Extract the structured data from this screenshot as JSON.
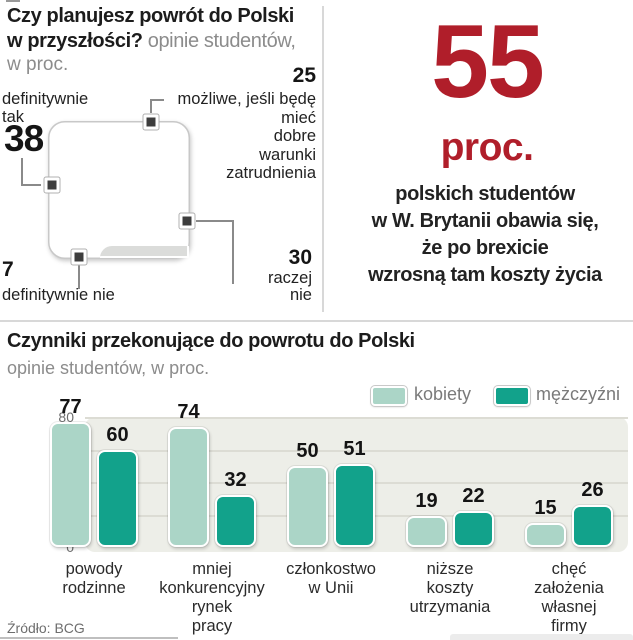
{
  "colors": {
    "teal_dark": "#12a28b",
    "teal_light": "#abd5c7",
    "slice_gray": "#dbdcda",
    "accent_red": "#b01e2a",
    "text_gray": "#8c8c8c",
    "plot_bg": "#edeee8"
  },
  "top_left": {
    "title_bold_1": "Czy planujesz powrót do Polski",
    "title_bold_2": "w przyszłości?",
    "title_sub": " opinie studentów,",
    "title_sub_2": "w proc.",
    "label_def_tak_1": "definitywnie",
    "label_def_tak_2": "tak",
    "label_mozliwe_lines": [
      "możliwe, jeśli będę",
      "mieć",
      "dobre",
      "warunki",
      "zatrudnienia"
    ],
    "label_def_nie": "definitywnie nie",
    "label_raczej_1": "raczej",
    "label_raczej_2": "nie"
  },
  "highlight": {
    "number": "55",
    "unit": "proc.",
    "lines": [
      "polskich studentów",
      "w W. Brytanii obawia się,",
      "że po brexicie",
      "wzrosną tam koszty życia"
    ]
  },
  "bar_section": {
    "title": "Czynniki przekonujące do powrotu do Polski",
    "subtitle": "opinie studentów, w proc."
  },
  "source": "Źródło: BCG",
  "chart_data": [
    {
      "type": "pie",
      "title": "Czy planujesz powrót do Polski w przyszłości?",
      "subtitle": "opinie studentów, w proc.",
      "shape": "rounded-square",
      "slices": [
        {
          "label": "definitywnie tak",
          "value": 38,
          "color": "#12a28b"
        },
        {
          "label": "możliwe, jeśli będę mieć dobre warunki zatrudnienia",
          "value": 25,
          "color": "#abd5c7"
        },
        {
          "label": "raczej nie",
          "value": 30,
          "color": "#dbdcda"
        },
        {
          "label": "definitywnie nie",
          "value": 7,
          "color": "#abd5c7"
        }
      ]
    },
    {
      "type": "bar",
      "title": "Czynniki przekonujące do powrotu do Polski",
      "subtitle": "opinie studentów, w proc.",
      "categories": [
        "powody rodzinne",
        "mniej konkurencyjny rynek pracy",
        "członkostwo w Unii",
        "niższe koszty utrzymania",
        "chęć założenia własnej firmy"
      ],
      "categories_lines": [
        [
          "powody",
          "rodzinne"
        ],
        [
          "mniej",
          "konkurencyjny",
          "rynek",
          "pracy"
        ],
        [
          "członkostwo",
          "w Unii"
        ],
        [
          "niższe",
          "koszty",
          "utrzymania"
        ],
        [
          "chęć",
          "założenia",
          "własnej",
          "firmy"
        ]
      ],
      "series": [
        {
          "name": "kobiety",
          "color": "#abd5c7",
          "values": [
            77,
            74,
            50,
            19,
            15
          ]
        },
        {
          "name": "mężczyźni",
          "color": "#12a28b",
          "values": [
            60,
            32,
            51,
            22,
            26
          ]
        }
      ],
      "yticks": [
        0,
        20,
        40,
        60,
        80
      ],
      "ylim": [
        0,
        80
      ],
      "grid": true,
      "legend_position": "top-right"
    }
  ]
}
